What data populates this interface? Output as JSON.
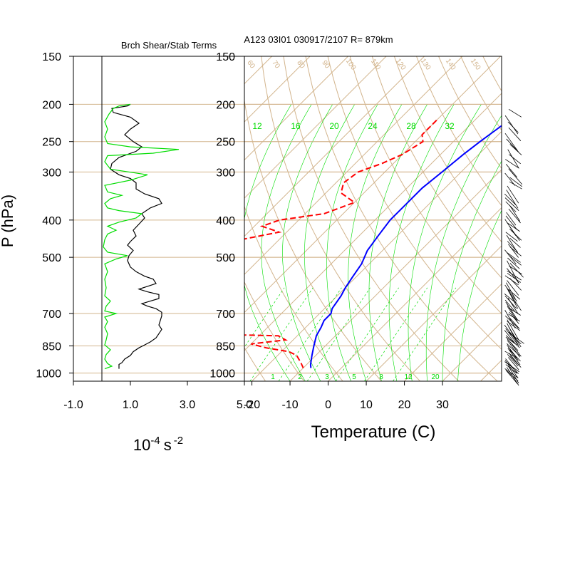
{
  "header": {
    "left_title": "Brch Shear/Stab Terms",
    "right_title": "A123 03I01 030917/2107 R= 879km"
  },
  "colors": {
    "temperature": "#0000ff",
    "dewpoint": "#ff0000",
    "shear_term": "#000000",
    "stability_term": "#00dd00",
    "grid": "#d2b48c",
    "mixing_ratio": "#00dd00"
  },
  "chart_data": [
    {
      "type": "line",
      "name": "left-panel",
      "title": "Brch Shear/Stab Terms",
      "ylabel": "P (hPa)",
      "xlabel_base": "10",
      "xlabel_exp1": "-4",
      "xlabel_unit": "s",
      "xlabel_exp2": "-2",
      "y_scale": "log",
      "y_reversed": true,
      "ylim": [
        1050,
        150
      ],
      "xlim": [
        -1.0,
        5.0
      ],
      "y_ticks": [
        1000,
        850,
        700,
        500,
        400,
        300,
        250,
        200,
        150
      ],
      "y_tick_labels": [
        "1000",
        "850",
        "700",
        "500",
        "400",
        "300",
        "250",
        "200",
        "150"
      ],
      "x_ticks": [
        -1.0,
        1.0,
        3.0,
        5.0
      ],
      "x_tick_labels": [
        "-1.0",
        "1.0",
        "3.0",
        "5.0"
      ],
      "zero_line_x": 0,
      "series": [
        {
          "key": "shear",
          "color": "#000000",
          "points": [
            [
              0.6,
              975
            ],
            [
              0.6,
              950
            ],
            [
              0.7,
              940
            ],
            [
              0.8,
              920
            ],
            [
              1.0,
              900
            ],
            [
              1.1,
              880
            ],
            [
              1.3,
              860
            ],
            [
              1.5,
              845
            ],
            [
              1.7,
              830
            ],
            [
              1.9,
              810
            ],
            [
              2.0,
              790
            ],
            [
              2.1,
              770
            ],
            [
              2.0,
              750
            ],
            [
              2.05,
              730
            ],
            [
              2.1,
              710
            ],
            [
              2.1,
              695
            ],
            [
              1.9,
              680
            ],
            [
              1.6,
              670
            ],
            [
              1.4,
              660
            ],
            [
              1.7,
              650
            ],
            [
              2.0,
              640
            ],
            [
              2.0,
              625
            ],
            [
              1.6,
              615
            ],
            [
              1.3,
              605
            ],
            [
              1.6,
              595
            ],
            [
              1.9,
              585
            ],
            [
              1.8,
              570
            ],
            [
              1.5,
              560
            ],
            [
              1.2,
              545
            ],
            [
              1.0,
              530
            ],
            [
              0.9,
              510
            ],
            [
              0.95,
              495
            ],
            [
              1.1,
              480
            ],
            [
              0.9,
              465
            ],
            [
              1.0,
              455
            ],
            [
              1.2,
              440
            ],
            [
              1.1,
              425
            ],
            [
              1.3,
              410
            ],
            [
              1.5,
              395
            ],
            [
              1.4,
              385
            ],
            [
              1.7,
              372
            ],
            [
              2.1,
              362
            ],
            [
              2.0,
              352
            ],
            [
              1.5,
              342
            ],
            [
              1.2,
              332
            ],
            [
              1.2,
              320
            ],
            [
              1.0,
              312
            ],
            [
              0.6,
              305
            ],
            [
              0.3,
              295
            ],
            [
              0.35,
              285
            ],
            [
              0.6,
              275
            ],
            [
              1.2,
              265
            ],
            [
              1.4,
              258
            ],
            [
              1.1,
              250
            ],
            [
              0.8,
              240
            ],
            [
              1.0,
              232
            ],
            [
              1.3,
              224
            ],
            [
              1.0,
              216
            ],
            [
              0.4,
              210
            ],
            [
              0.35,
              205
            ],
            [
              0.9,
              202
            ],
            [
              1.0,
              200
            ]
          ]
        },
        {
          "key": "stability",
          "color": "#00dd00",
          "points": [
            [
              0.1,
              975
            ],
            [
              0.35,
              960
            ],
            [
              0.2,
              945
            ],
            [
              0.1,
              920
            ],
            [
              0.15,
              895
            ],
            [
              0.3,
              870
            ],
            [
              0.1,
              845
            ],
            [
              0.15,
              820
            ],
            [
              0.2,
              790
            ],
            [
              0.1,
              760
            ],
            [
              0.2,
              735
            ],
            [
              0.1,
              715
            ],
            [
              0.5,
              700
            ],
            [
              0.1,
              690
            ],
            [
              0.15,
              670
            ],
            [
              0.3,
              650
            ],
            [
              0.1,
              630
            ],
            [
              0.15,
              600
            ],
            [
              0.1,
              570
            ],
            [
              0.2,
              545
            ],
            [
              0.1,
              520
            ],
            [
              0.5,
              505
            ],
            [
              0.9,
              495
            ],
            [
              0.2,
              485
            ],
            [
              0.05,
              470
            ],
            [
              0.1,
              450
            ],
            [
              0.2,
              435
            ],
            [
              0.5,
              425
            ],
            [
              0.2,
              415
            ],
            [
              0.6,
              405
            ],
            [
              1.2,
              395
            ],
            [
              1.4,
              385
            ],
            [
              0.6,
              378
            ],
            [
              0.2,
              372
            ],
            [
              0.1,
              362
            ],
            [
              0.3,
              352
            ],
            [
              0.7,
              345
            ],
            [
              0.2,
              338
            ],
            [
              0.1,
              325
            ],
            [
              1.0,
              315
            ],
            [
              1.6,
              305
            ],
            [
              0.3,
              295
            ],
            [
              0.1,
              282
            ],
            [
              0.2,
              272
            ],
            [
              1.8,
              268
            ],
            [
              2.7,
              262
            ],
            [
              1.0,
              258
            ],
            [
              0.2,
              253
            ],
            [
              0.1,
              243
            ],
            [
              0.2,
              232
            ],
            [
              0.1,
              222
            ],
            [
              0.25,
              212
            ],
            [
              0.4,
              205
            ],
            [
              0.6,
              202
            ],
            [
              1.0,
              200
            ]
          ]
        }
      ]
    },
    {
      "type": "line",
      "name": "skew-t",
      "title": "A123 03I01 030917/2107 R= 879km",
      "xlabel": "Temperature (C)",
      "ylabel": "P (hPa)",
      "y_scale": "log",
      "y_reversed": true,
      "ylim": [
        1050,
        150
      ],
      "x_ticks": [
        -20,
        -10,
        0,
        10,
        20,
        30
      ],
      "x_tick_labels": [
        "-20",
        "-10",
        "0",
        "10",
        "20",
        "30"
      ],
      "y_ticks": [
        1000,
        850,
        700,
        500,
        400,
        300,
        250,
        200,
        150
      ],
      "y_tick_labels": [
        "1000",
        "850",
        "700",
        "500",
        "400",
        "300",
        "250",
        "200",
        "150"
      ],
      "grid": true,
      "mixing_ratio_labels_top": [
        "12",
        "16",
        "20",
        "24",
        "28",
        "32"
      ],
      "mixing_ratio_labels_bottom": [
        "1",
        "2",
        "3",
        "5",
        "8",
        "12",
        "20"
      ],
      "isotherm_labels": [
        "60",
        "70",
        "80",
        "90",
        "100",
        "110",
        "120",
        "130",
        "140",
        "150"
      ],
      "series": [
        {
          "name": "temperature",
          "color": "#0000ff",
          "points": [
            [
              -20,
              200
            ],
            [
              -21,
              220
            ],
            [
              -23,
              250
            ],
            [
              -24,
              270
            ],
            [
              -25,
              300
            ],
            [
              -26,
              330
            ],
            [
              -26,
              360
            ],
            [
              -26,
              400
            ],
            [
              -25,
              440
            ],
            [
              -24,
              480
            ],
            [
              -22,
              520
            ],
            [
              -21,
              560
            ],
            [
              -20,
              600
            ],
            [
              -19,
              630
            ],
            [
              -18,
              680
            ],
            [
              -17,
              700
            ],
            [
              -17,
              730
            ],
            [
              -16,
              760
            ],
            [
              -15,
              800
            ],
            [
              -13,
              850
            ],
            [
              -11,
              900
            ],
            [
              -9,
              950
            ],
            [
              -8,
              970
            ]
          ]
        },
        {
          "name": "dewpoint",
          "color": "#ff0000",
          "dashed": true,
          "points": [
            [
              -40,
              220
            ],
            [
              -40,
              240
            ],
            [
              -38,
              250
            ],
            [
              -40,
              270
            ],
            [
              -43,
              285
            ],
            [
              -47,
              300
            ],
            [
              -48,
              320
            ],
            [
              -46,
              340
            ],
            [
              -40,
              360
            ],
            [
              -45,
              385
            ],
            [
              -55,
              400
            ],
            [
              -58,
              415
            ],
            [
              -52,
              430
            ],
            [
              -60,
              450
            ],
            [
              -62,
              470
            ],
            [
              -65,
              490
            ],
            [
              -70,
              510
            ],
            [
              -68,
              540
            ],
            [
              -67,
              560
            ],
            [
              -70,
              580
            ],
            [
              -72,
              600
            ],
            [
              -65,
              620
            ],
            [
              -73,
              640
            ],
            [
              -72,
              660
            ],
            [
              -50,
              690
            ],
            [
              -40,
              695
            ],
            [
              -70,
              710
            ],
            [
              -72,
              720
            ],
            [
              -78,
              740
            ],
            [
              -60,
              755
            ],
            [
              -72,
              770
            ],
            [
              -50,
              790
            ],
            [
              -25,
              800
            ],
            [
              -22,
              820
            ],
            [
              -30,
              840
            ],
            [
              -25,
              860
            ],
            [
              -18,
              880
            ],
            [
              -15,
              900
            ],
            [
              -12,
              940
            ],
            [
              -10,
              970
            ]
          ]
        }
      ]
    }
  ]
}
